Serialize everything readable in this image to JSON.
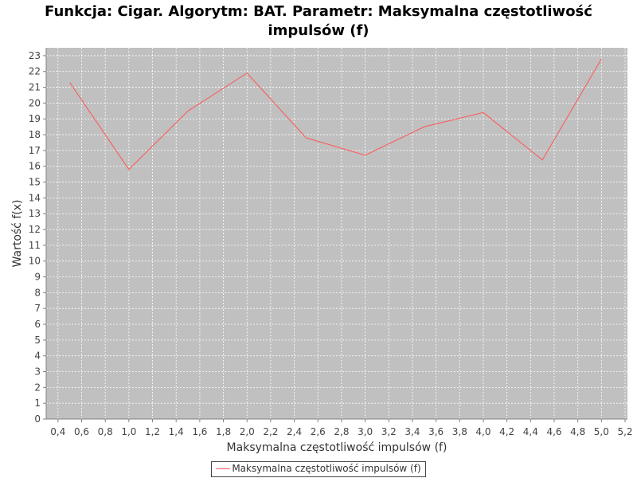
{
  "chart_data": {
    "type": "line",
    "title_lines": [
      "Funkcja: Cigar. Algorytm: BAT. Parametr: Maksymalna częstotliwość",
      "impulsów (f)"
    ],
    "xlabel": "Maksymalna częstotliwość impulsów (f)",
    "ylabel": "Wartość f(x)",
    "xlim": [
      0.3,
      5.22
    ],
    "ylim": [
      0,
      23.5
    ],
    "x_ticks": [
      "0,4",
      "0,6",
      "0,8",
      "1,0",
      "1,2",
      "1,4",
      "1,6",
      "1,8",
      "2,0",
      "2,2",
      "2,4",
      "2,6",
      "2,8",
      "3,0",
      "3,2",
      "3,4",
      "3,6",
      "3,8",
      "4,0",
      "4,2",
      "4,4",
      "4,6",
      "4,8",
      "5,0",
      "5,2"
    ],
    "y_ticks": [
      "0",
      "1",
      "2",
      "3",
      "4",
      "5",
      "6",
      "7",
      "8",
      "9",
      "10",
      "11",
      "12",
      "13",
      "14",
      "15",
      "16",
      "17",
      "18",
      "19",
      "20",
      "21",
      "22",
      "23"
    ],
    "grid": true,
    "legend_position": "bottom",
    "series": [
      {
        "name": "Maksymalna częstotliwość impulsów (f)",
        "color": "#ff5555",
        "x": [
          0.5,
          1.0,
          1.5,
          2.0,
          2.5,
          3.0,
          3.5,
          4.0,
          4.5,
          5.0
        ],
        "y": [
          21.3,
          15.8,
          19.5,
          21.9,
          17.8,
          16.7,
          18.5,
          19.4,
          16.4,
          22.8
        ]
      }
    ],
    "colors": {
      "plot_background": "#c0c0c0",
      "grid": "#ffffff",
      "axis": "#808080"
    }
  }
}
